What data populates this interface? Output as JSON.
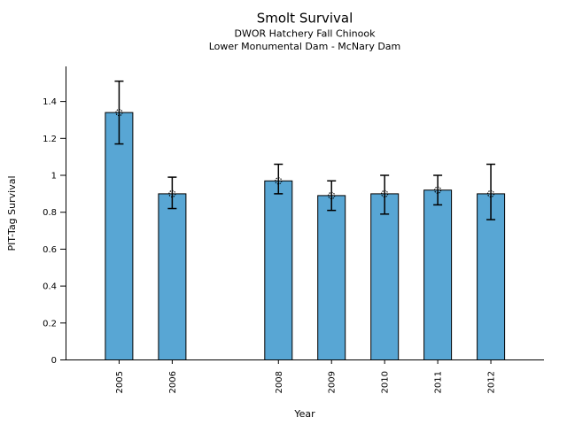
{
  "chart_data": {
    "type": "bar",
    "title": "Smolt Survival",
    "subtitle": [
      "DWOR Hatchery Fall Chinook",
      "Lower Monumental Dam - McNary Dam"
    ],
    "xlabel": "Year",
    "ylabel": "PIT-Tag Survival",
    "categories": [
      "2005",
      "2006",
      "2008",
      "2009",
      "2010",
      "2011",
      "2012"
    ],
    "x": [
      2005,
      2006,
      2008,
      2009,
      2010,
      2011,
      2012
    ],
    "values": [
      1.34,
      0.9,
      0.97,
      0.89,
      0.9,
      0.92,
      0.9
    ],
    "error_low": [
      1.17,
      0.82,
      0.9,
      0.81,
      0.79,
      0.84,
      0.76
    ],
    "error_high": [
      1.51,
      0.99,
      1.06,
      0.97,
      1.0,
      1.0,
      1.06
    ],
    "missing_years": [
      2007
    ],
    "xlim": [
      2004,
      2013
    ],
    "ylim": [
      0,
      1.59
    ],
    "yticks": [
      0,
      0.2,
      0.4,
      0.6,
      0.8,
      1,
      1.2,
      1.4
    ],
    "ytick_labels": [
      "0",
      "0.2",
      "0.4",
      "0.6",
      "0.8",
      "1",
      "1.2",
      "1.4"
    ],
    "grid": false,
    "legend": "none",
    "bar_color": "#58A6D4",
    "bar_edge_color": "#000000",
    "error_color": "#000000",
    "marker": "open-circle-dotted",
    "background_color": "#FFFFFF",
    "text_color": "#000000"
  }
}
